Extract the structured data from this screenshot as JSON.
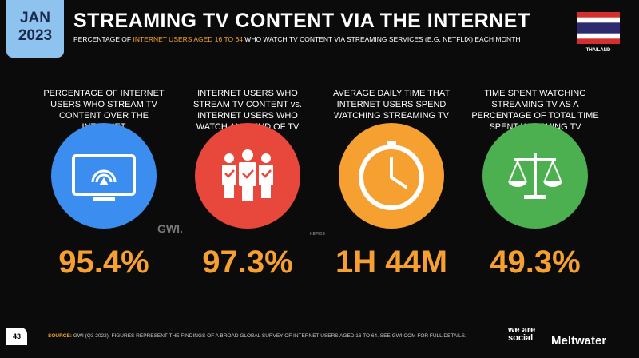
{
  "header": {
    "month": "JAN",
    "year": "2023",
    "title": "STREAMING TV CONTENT VIA THE INTERNET",
    "subtitle": {
      "before": "PERCENTAGE OF ",
      "highlight": "INTERNET USERS AGED 16 TO 64",
      "after": " WHO WATCH TV CONTENT VIA STREAMING SERVICES (E.G. NETFLIX) EACH MONTH"
    },
    "country": "THAILAND"
  },
  "panels": [
    {
      "label": "PERCENTAGE OF INTERNET USERS WHO STREAM TV CONTENT OVER THE INTERNET",
      "value": "95.4%"
    },
    {
      "label": "INTERNET USERS WHO STREAM TV CONTENT vs. INTERNET USERS WHO WATCH ANY KIND OF TV",
      "value": "97.3%"
    },
    {
      "label": "AVERAGE DAILY TIME THAT INTERNET USERS SPEND WATCHING STREAMING TV",
      "value": "1H 44M"
    },
    {
      "label": "TIME SPENT WATCHING STREAMING TV AS A PERCENTAGE OF TOTAL TIME SPENT WATCHING TV",
      "value": "49.3%"
    }
  ],
  "logos": {
    "gwi": "GWI.",
    "kepios": "KEPIOS"
  },
  "footer": {
    "page": "43",
    "source_label": "SOURCE:",
    "source": " GWI (Q3 2022). FIGURES REPRESENT THE FINDINGS OF A BROAD GLOBAL SURVEY OF INTERNET USERS AGED 16 TO 64. SEE GWI.COM FOR FULL DETAILS.",
    "brand1": "we are social",
    "brand2": "Meltwater"
  }
}
